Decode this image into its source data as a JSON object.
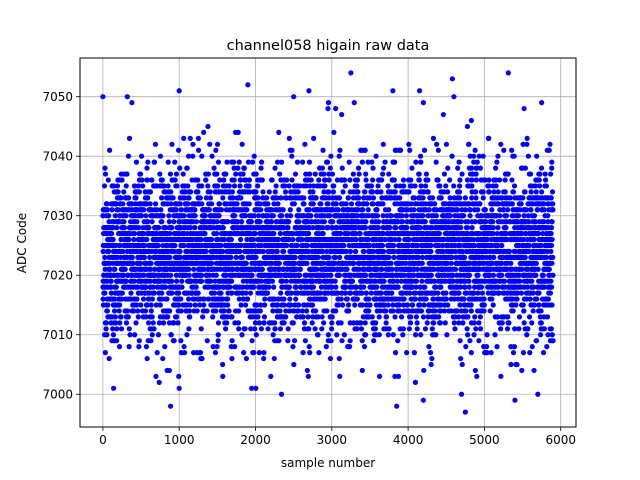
{
  "chart_data": {
    "type": "scatter",
    "title": "channel058 higain raw data",
    "xlabel": "sample number",
    "ylabel": "ADC Code",
    "xlim": [
      -300,
      6200
    ],
    "ylim": [
      6994.5,
      7056.5
    ],
    "xticks": [
      0,
      1000,
      2000,
      3000,
      4000,
      5000,
      6000
    ],
    "yticks": [
      7000,
      7010,
      7020,
      7030,
      7040,
      7050
    ],
    "grid": true,
    "series": [
      {
        "color": "#0000ff",
        "marker": "circle",
        "generator": {
          "n_points": 5900,
          "x_range": [
            0,
            5900
          ],
          "y_mean": 7024,
          "y_std": 7.0,
          "y_integer": true
        },
        "points": [
          [
            0,
            7050
          ],
          [
            1000,
            7051
          ],
          [
            1900,
            7052
          ],
          [
            3250,
            7054
          ],
          [
            4580,
            7053
          ],
          [
            2700,
            7051
          ],
          [
            4150,
            7051
          ],
          [
            4600,
            7050
          ],
          [
            2500,
            7050
          ],
          [
            320,
            7050
          ],
          [
            380,
            7049
          ],
          [
            2950,
            7048
          ],
          [
            3050,
            7048
          ],
          [
            5520,
            7048
          ],
          [
            5750,
            7049
          ],
          [
            3800,
            7051
          ],
          [
            4200,
            7049
          ],
          [
            5700,
            7000
          ],
          [
            4750,
            6997
          ],
          [
            3850,
            6998
          ],
          [
            4200,
            6999
          ],
          [
            5400,
            6999
          ],
          [
            1950,
            7001
          ],
          [
            1000,
            7001
          ],
          [
            140,
            7001
          ],
          [
            4700,
            7000
          ],
          [
            4900,
            7003
          ],
          [
            2200,
            7003
          ],
          [
            3400,
            7004
          ],
          [
            5650,
            7004
          ]
        ]
      }
    ]
  }
}
